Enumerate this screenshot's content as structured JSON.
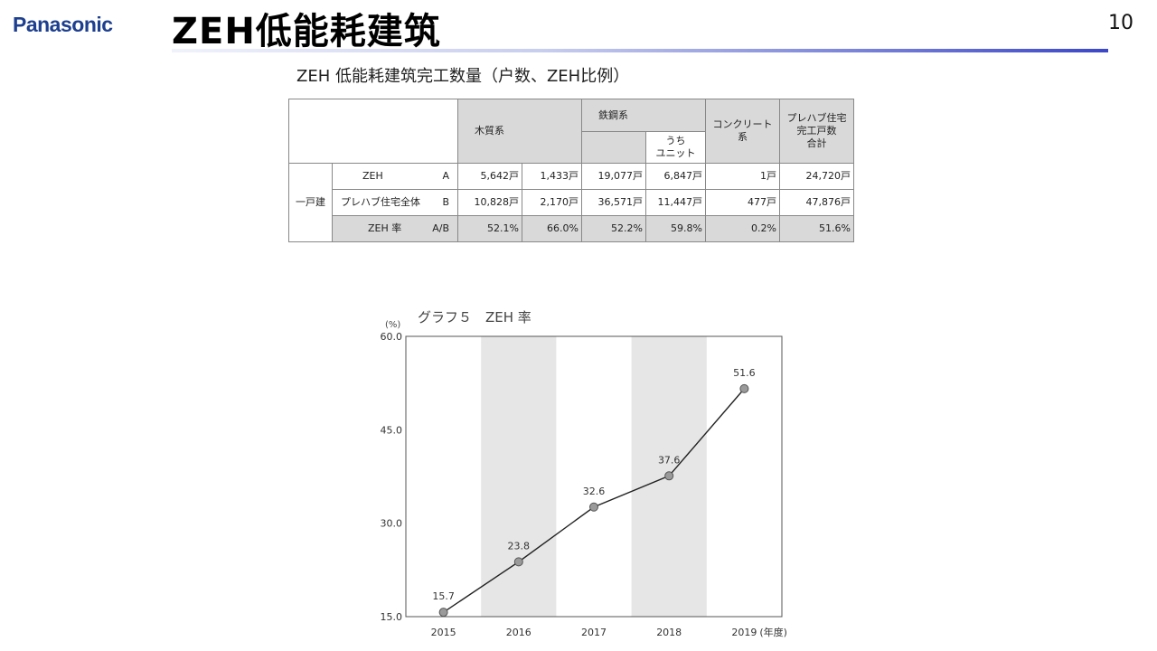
{
  "header": {
    "logo_text": "Panasonic",
    "title": "ZEH低能耗建筑",
    "page_number": "10"
  },
  "table": {
    "caption": "ZEH 低能耗建筑完工数量（户数、ZEH比例）",
    "columns": {
      "wood": "木質系",
      "steel": "鉄鋼系",
      "unit_of": "うち\nユニット",
      "concrete": "コンクリート\n系",
      "total": "プレハブ住宅\n完工戸数\n合計"
    },
    "group_label": "一戸建",
    "rows": [
      {
        "label": "ZEH",
        "code": "A",
        "cells": [
          "5,642戸",
          "1,433戸",
          "19,077戸",
          "6,847戸",
          "1戸",
          "24,720戸"
        ]
      },
      {
        "label": "プレハブ住宅全体",
        "code": "B",
        "cells": [
          "10,828戸",
          "2,170戸",
          "36,571戸",
          "11,447戸",
          "477戸",
          "47,876戸"
        ]
      },
      {
        "label": "ZEH 率",
        "code": "A/B",
        "cells": [
          "52.1%",
          "66.0%",
          "52.2%",
          "59.8%",
          "0.2%",
          "51.6%"
        ]
      }
    ]
  },
  "chart_data": {
    "type": "line",
    "title": "グラフ５　ZEH 率",
    "ylabel": "(%)",
    "xlabel_suffix": "(年度)",
    "categories": [
      "2015",
      "2016",
      "2017",
      "2018",
      "2019"
    ],
    "values": [
      15.7,
      23.8,
      32.6,
      37.6,
      51.6
    ],
    "value_labels": [
      "15.7",
      "23.8",
      "32.6",
      "37.6",
      "51.6"
    ],
    "yticks": [
      "15.0",
      "30.0",
      "45.0",
      "60.0"
    ],
    "ytick_values": [
      15,
      30,
      45,
      60
    ],
    "ylim": [
      15,
      60
    ],
    "grid": false,
    "alternating_bands": true,
    "band_color": "#e6e6e6",
    "line_color": "#222222",
    "marker_color": "#9a9a9a"
  }
}
